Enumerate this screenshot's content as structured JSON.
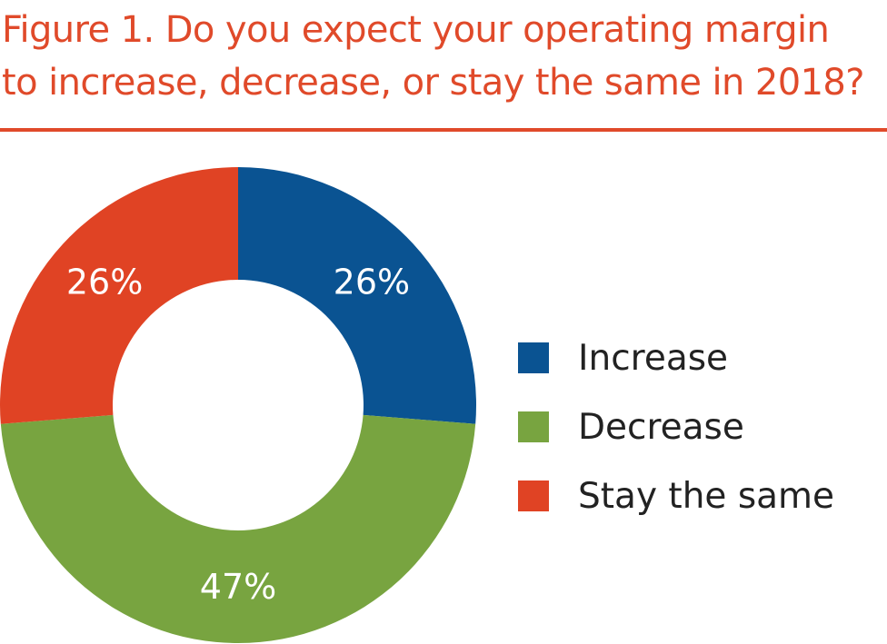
{
  "title": {
    "line1": "Figure 1. Do you expect your operating margin",
    "line2": "to increase, decrease, or stay the same in 2018?"
  },
  "colors": {
    "title": "#e04a2a",
    "increase": "#0a5392",
    "decrease": "#78a440",
    "same": "#e04324"
  },
  "chart_data": {
    "type": "pie",
    "donut": true,
    "title": "Figure 1. Do you expect your operating margin to increase, decrease, or stay the same in 2018?",
    "categories": [
      "Increase",
      "Decrease",
      "Stay the same"
    ],
    "values": [
      26,
      47,
      26
    ],
    "labels": [
      "26%",
      "47%",
      "26%"
    ],
    "legend": "right"
  }
}
